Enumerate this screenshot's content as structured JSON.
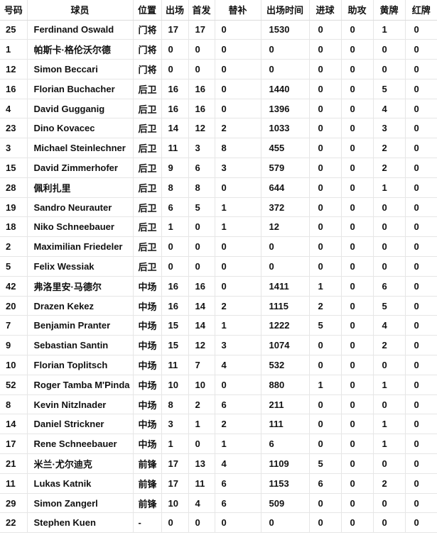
{
  "table": {
    "headers": [
      "号码",
      "球员",
      "位置",
      "出场",
      "首发",
      "替补",
      "出场时间",
      "进球",
      "助攻",
      "黄牌",
      "红牌"
    ],
    "rows": [
      [
        "25",
        "Ferdinand Oswald",
        "门将",
        "17",
        "17",
        "0",
        "1530",
        "0",
        "0",
        "1",
        "0"
      ],
      [
        "1",
        "帕斯卡·格伦沃尔德",
        "门将",
        "0",
        "0",
        "0",
        "0",
        "0",
        "0",
        "0",
        "0"
      ],
      [
        "12",
        "Simon Beccari",
        "门将",
        "0",
        "0",
        "0",
        "0",
        "0",
        "0",
        "0",
        "0"
      ],
      [
        "16",
        "Florian Buchacher",
        "后卫",
        "16",
        "16",
        "0",
        "1440",
        "0",
        "0",
        "5",
        "0"
      ],
      [
        "4",
        "David Gugganig",
        "后卫",
        "16",
        "16",
        "0",
        "1396",
        "0",
        "0",
        "4",
        "0"
      ],
      [
        "23",
        "Dino Kovacec",
        "后卫",
        "14",
        "12",
        "2",
        "1033",
        "0",
        "0",
        "3",
        "0"
      ],
      [
        "3",
        "Michael Steinlechner",
        "后卫",
        "11",
        "3",
        "8",
        "455",
        "0",
        "0",
        "2",
        "0"
      ],
      [
        "15",
        "David Zimmerhofer",
        "后卫",
        "9",
        "6",
        "3",
        "579",
        "0",
        "0",
        "2",
        "0"
      ],
      [
        "28",
        "佩利扎里",
        "后卫",
        "8",
        "8",
        "0",
        "644",
        "0",
        "0",
        "1",
        "0"
      ],
      [
        "19",
        "Sandro Neurauter",
        "后卫",
        "6",
        "5",
        "1",
        "372",
        "0",
        "0",
        "0",
        "0"
      ],
      [
        "18",
        "Niko Schneebauer",
        "后卫",
        "1",
        "0",
        "1",
        "12",
        "0",
        "0",
        "0",
        "0"
      ],
      [
        "2",
        "Maximilian Friedeler",
        "后卫",
        "0",
        "0",
        "0",
        "0",
        "0",
        "0",
        "0",
        "0"
      ],
      [
        "5",
        "Felix Wessiak",
        "后卫",
        "0",
        "0",
        "0",
        "0",
        "0",
        "0",
        "0",
        "0"
      ],
      [
        "42",
        "弗洛里安·马德尔",
        "中场",
        "16",
        "16",
        "0",
        "1411",
        "1",
        "0",
        "6",
        "0"
      ],
      [
        "20",
        "Drazen Kekez",
        "中场",
        "16",
        "14",
        "2",
        "1115",
        "2",
        "0",
        "5",
        "0"
      ],
      [
        "7",
        "Benjamin Pranter",
        "中场",
        "15",
        "14",
        "1",
        "1222",
        "5",
        "0",
        "4",
        "0"
      ],
      [
        "9",
        "Sebastian Santin",
        "中场",
        "15",
        "12",
        "3",
        "1074",
        "0",
        "0",
        "2",
        "0"
      ],
      [
        "10",
        "Florian Toplitsch",
        "中场",
        "11",
        "7",
        "4",
        "532",
        "0",
        "0",
        "0",
        "0"
      ],
      [
        "52",
        "Roger Tamba M'Pinda",
        "中场",
        "10",
        "10",
        "0",
        "880",
        "1",
        "0",
        "1",
        "0"
      ],
      [
        "8",
        "Kevin Nitzlnader",
        "中场",
        "8",
        "2",
        "6",
        "211",
        "0",
        "0",
        "0",
        "0"
      ],
      [
        "14",
        "Daniel Strickner",
        "中场",
        "3",
        "1",
        "2",
        "111",
        "0",
        "0",
        "1",
        "0"
      ],
      [
        "17",
        "Rene Schneebauer",
        "中场",
        "1",
        "0",
        "1",
        "6",
        "0",
        "0",
        "1",
        "0"
      ],
      [
        "21",
        "米兰·尤尔迪克",
        "前锋",
        "17",
        "13",
        "4",
        "1109",
        "5",
        "0",
        "0",
        "0"
      ],
      [
        "11",
        "Lukas Katnik",
        "前锋",
        "17",
        "11",
        "6",
        "1153",
        "6",
        "0",
        "2",
        "0"
      ],
      [
        "29",
        "Simon Zangerl",
        "前锋",
        "10",
        "4",
        "6",
        "509",
        "0",
        "0",
        "0",
        "0"
      ],
      [
        "22",
        "Stephen Kuen",
        "-",
        "0",
        "0",
        "0",
        "0",
        "0",
        "0",
        "0",
        "0"
      ]
    ]
  },
  "colors": {
    "background": "#ffffff",
    "text": "#111111",
    "row_border": "#e6e6e6",
    "header_border": "#dcdcdc"
  }
}
